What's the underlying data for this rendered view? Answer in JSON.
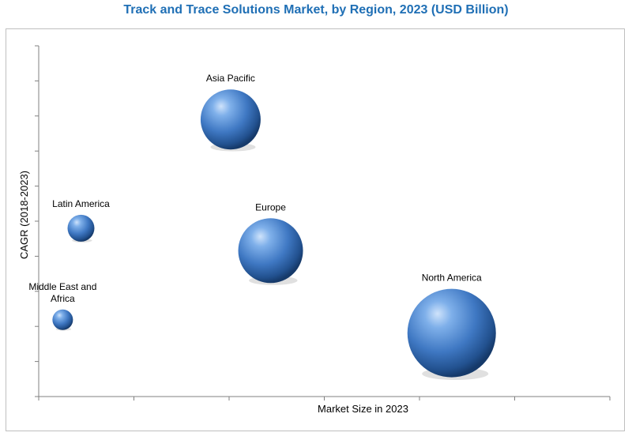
{
  "chart_data": {
    "type": "scatter",
    "title": "Track and Trace Solutions Market, by Region, 2023 (USD Billion)",
    "xlabel": "Market Size in 2023",
    "ylabel": "CAGR (2018-2023)",
    "x_tick_count": 6,
    "y_tick_count": 10,
    "grid": false,
    "xlim": [
      0,
      100
    ],
    "ylim": [
      0,
      100
    ],
    "points": [
      {
        "name": "Asia Pacific",
        "label_lines": [
          "Asia Pacific"
        ],
        "x": 33.6,
        "y": 79.0,
        "size": 38,
        "label_side": "top"
      },
      {
        "name": "Latin America",
        "label_lines": [
          "Latin America"
        ],
        "x": 7.4,
        "y": 48.0,
        "size": 17,
        "label_side": "top"
      },
      {
        "name": "Europe",
        "label_lines": [
          "Europe"
        ],
        "x": 40.6,
        "y": 41.6,
        "size": 41,
        "label_side": "top"
      },
      {
        "name": "Middle East and Africa",
        "label_lines": [
          "Middle East and",
          "Africa"
        ],
        "x": 4.2,
        "y": 21.9,
        "size": 13,
        "label_side": "top"
      },
      {
        "name": "North America",
        "label_lines": [
          "North America"
        ],
        "x": 72.3,
        "y": 18.1,
        "size": 56,
        "label_side": "top"
      }
    ]
  }
}
